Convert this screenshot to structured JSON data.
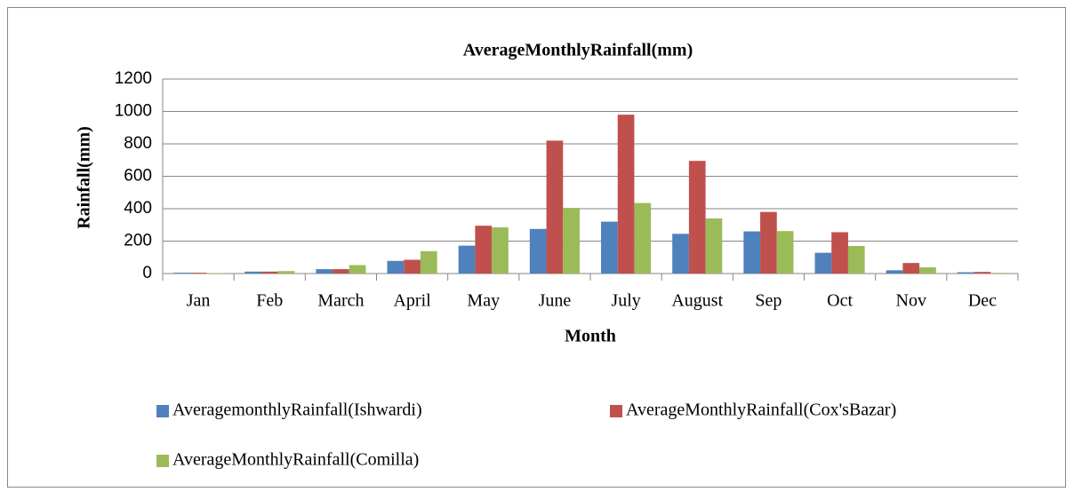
{
  "chart_data": {
    "type": "bar",
    "title": "AverageMonthlyRainfall(mm)",
    "x_label": "Month",
    "y_label": "Rainfall(mm)",
    "categories": [
      "Jan",
      "Feb",
      "March",
      "April",
      "May",
      "June",
      "July",
      "August",
      "Sep",
      "Oct",
      "Nov",
      "Dec"
    ],
    "series": [
      {
        "name": "AveragemonthlyRainfall(Ishwardi)",
        "color": "#4f81bd",
        "values": [
          5,
          12,
          27,
          78,
          172,
          275,
          320,
          245,
          260,
          128,
          20,
          8
        ]
      },
      {
        "name": "AverageMonthlyRainfall(Cox'sBazar)",
        "color": "#c0504d",
        "values": [
          5,
          12,
          27,
          85,
          295,
          820,
          980,
          695,
          380,
          255,
          65,
          10
        ]
      },
      {
        "name": "AverageMonthlyRainfall(Comilla)",
        "color": "#9bbb59",
        "values": [
          3,
          15,
          52,
          138,
          285,
          405,
          435,
          340,
          262,
          170,
          38,
          4
        ]
      }
    ],
    "ylim": [
      0,
      1200
    ],
    "yticks": [
      0,
      200,
      400,
      600,
      800,
      1000,
      1200
    ],
    "grid": true,
    "legend": "bottom"
  }
}
